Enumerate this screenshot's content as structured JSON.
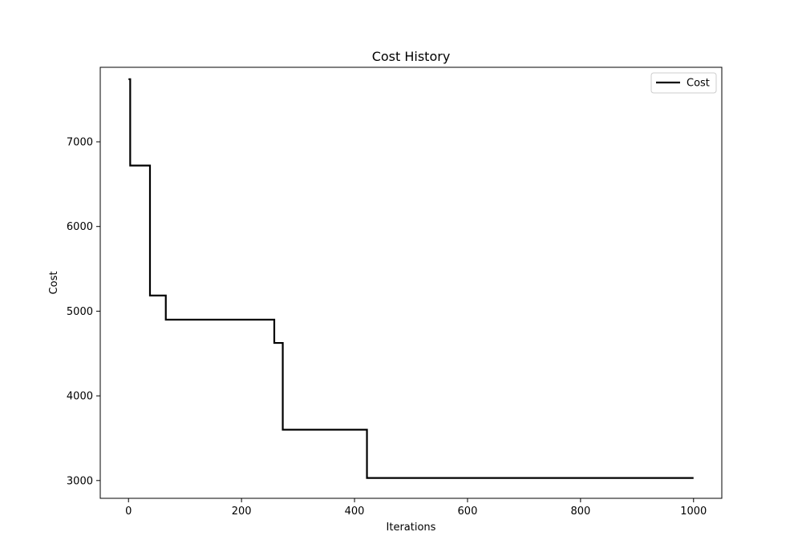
{
  "chart_data": {
    "type": "line",
    "title": "Cost History",
    "xlabel": "Iterations",
    "ylabel": "Cost",
    "xlim": [
      -50,
      1050
    ],
    "ylim": [
      2790,
      7880
    ],
    "xticks": [
      0,
      200,
      400,
      600,
      800,
      1000
    ],
    "yticks": [
      3000,
      4000,
      5000,
      6000,
      7000
    ],
    "grid": false,
    "legend_position": "top-right",
    "colors": {
      "line": "#000000"
    },
    "series": [
      {
        "name": "Cost",
        "step": "post",
        "x": [
          0,
          3,
          38,
          66,
          258,
          273,
          422,
          1000
        ],
        "y": [
          7740,
          6720,
          5185,
          4900,
          4625,
          3600,
          3030,
          3030
        ]
      }
    ]
  }
}
